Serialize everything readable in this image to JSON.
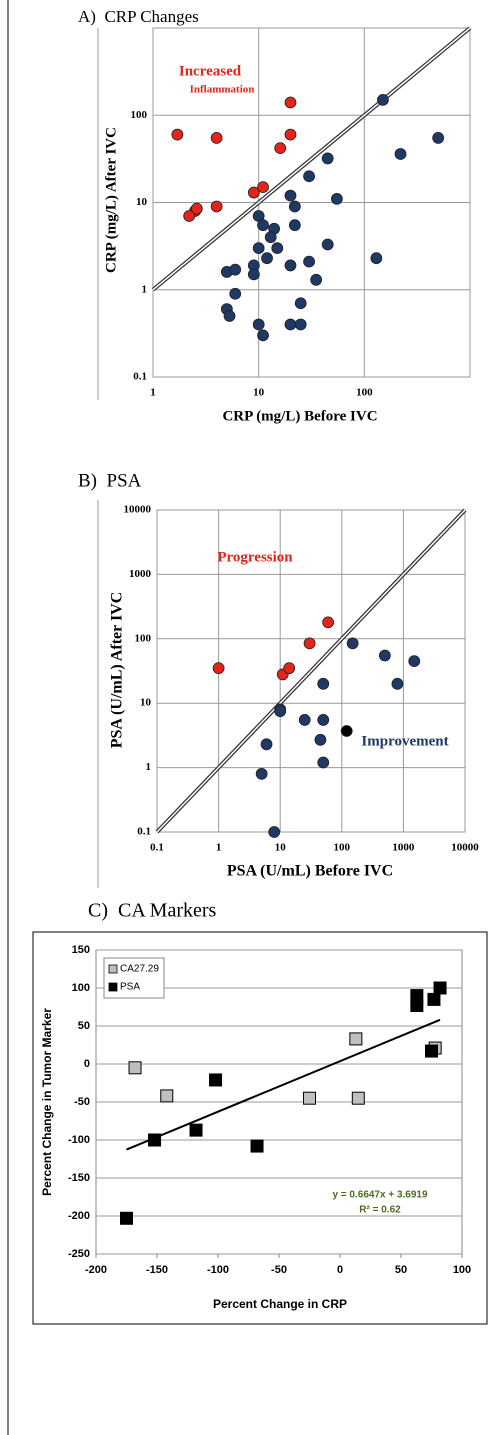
{
  "chart_data": [
    {
      "type": "scatter",
      "title": "A)  CRP Changes",
      "xlabel": "CRP (mg/L) Before IVC",
      "ylabel": "CRP (mg/L) After IVC",
      "annotations": [
        "Increased",
        "Inflammation"
      ],
      "xlog": true,
      "ylog": true,
      "grid": true,
      "identity_line": true,
      "xlim": [
        1,
        1000
      ],
      "ylim": [
        0.1,
        1000
      ],
      "xticks": [
        1,
        10,
        100
      ],
      "yticks": [
        0.1,
        1,
        10,
        100
      ],
      "series": [
        {
          "color": "#e3241b",
          "x": [
            1.7,
            4,
            20,
            20,
            16,
            9,
            11,
            4,
            2.5,
            2.6,
            2.2
          ],
          "values": [
            60,
            55,
            140,
            60,
            42,
            13,
            15,
            9,
            8,
            8.5,
            7
          ]
        },
        {
          "color": "#1f3864",
          "x": [
            150,
            500,
            220,
            45,
            30,
            55,
            20,
            22,
            10,
            11,
            14,
            13,
            22,
            15,
            10,
            130,
            45,
            30,
            35,
            20,
            12,
            9,
            9,
            5,
            6,
            6,
            5,
            5.3,
            25,
            10,
            11,
            20,
            25
          ],
          "values": [
            150,
            55,
            36,
            32,
            20,
            11,
            12,
            9,
            7,
            5.5,
            5,
            4,
            5.5,
            3,
            3,
            2.3,
            3.3,
            2.1,
            1.3,
            1.9,
            2.3,
            1.9,
            1.5,
            1.6,
            1.7,
            0.9,
            0.6,
            0.5,
            0.7,
            0.4,
            0.3,
            0.4,
            0.4
          ]
        }
      ]
    },
    {
      "type": "scatter",
      "title": "B)  PSA",
      "xlabel": "PSA (U/mL) Before IVC",
      "ylabel": "PSA (U/mL) After IVC",
      "annotations": [
        "Progression",
        "Improvement"
      ],
      "xlog": true,
      "ylog": true,
      "grid": true,
      "identity_line": true,
      "xlim": [
        0.1,
        10000
      ],
      "ylim": [
        0.1,
        10000
      ],
      "xticks": [
        0.1,
        1,
        10,
        100,
        1000,
        10000
      ],
      "yticks": [
        0.1,
        1,
        10,
        100,
        1000,
        10000
      ],
      "series": [
        {
          "color": "#e3241b",
          "x": [
            1,
            11,
            14,
            30,
            60
          ],
          "values": [
            35,
            28,
            35,
            85,
            180
          ]
        },
        {
          "color": "#1f3864",
          "x": [
            150,
            500,
            1500,
            800,
            50,
            10,
            10,
            50,
            25,
            45,
            6,
            5,
            50,
            8
          ],
          "values": [
            85,
            55,
            45,
            20,
            20,
            8,
            7.5,
            5.5,
            5.5,
            2.7,
            2.3,
            0.8,
            1.2,
            0.1
          ]
        },
        {
          "color": "#000000",
          "x": [
            120
          ],
          "values": [
            3.7
          ]
        }
      ]
    },
    {
      "type": "scatter",
      "title": "C)  CA Markers",
      "xlabel": "Percent Change in CRP",
      "ylabel": "Percent Change in Tumor Marker",
      "grid": true,
      "marker": "square",
      "legend": "upper left",
      "xlim": [
        -200,
        100
      ],
      "ylim": [
        -250,
        150
      ],
      "xticks": [
        -200,
        -150,
        -100,
        -50,
        0,
        50,
        100
      ],
      "yticks": [
        -250,
        -200,
        -150,
        -100,
        -50,
        0,
        50,
        100,
        150
      ],
      "trendline": {
        "label": "y = 0.6647x + 3.6919",
        "r2_label": "R² = 0.62",
        "slope": 0.6647,
        "intercept": 3.6919,
        "x": [
          -175,
          82
        ],
        "color": "#000000",
        "label_color": "#4e6b1f"
      },
      "series": [
        {
          "name": "CA27.29",
          "color": "#bfbfbf",
          "x": [
            -168,
            -142,
            -25,
            15,
            13,
            78
          ],
          "values": [
            -5,
            -42,
            -45,
            -45,
            33,
            21
          ]
        },
        {
          "name": "PSA",
          "color": "#000000",
          "x": [
            -175,
            -152,
            -118,
            -102,
            -68,
            63,
            63,
            75,
            77,
            82
          ],
          "values": [
            -203,
            -100,
            -87,
            -21,
            -108,
            77,
            90,
            17,
            85,
            100
          ]
        }
      ]
    }
  ]
}
